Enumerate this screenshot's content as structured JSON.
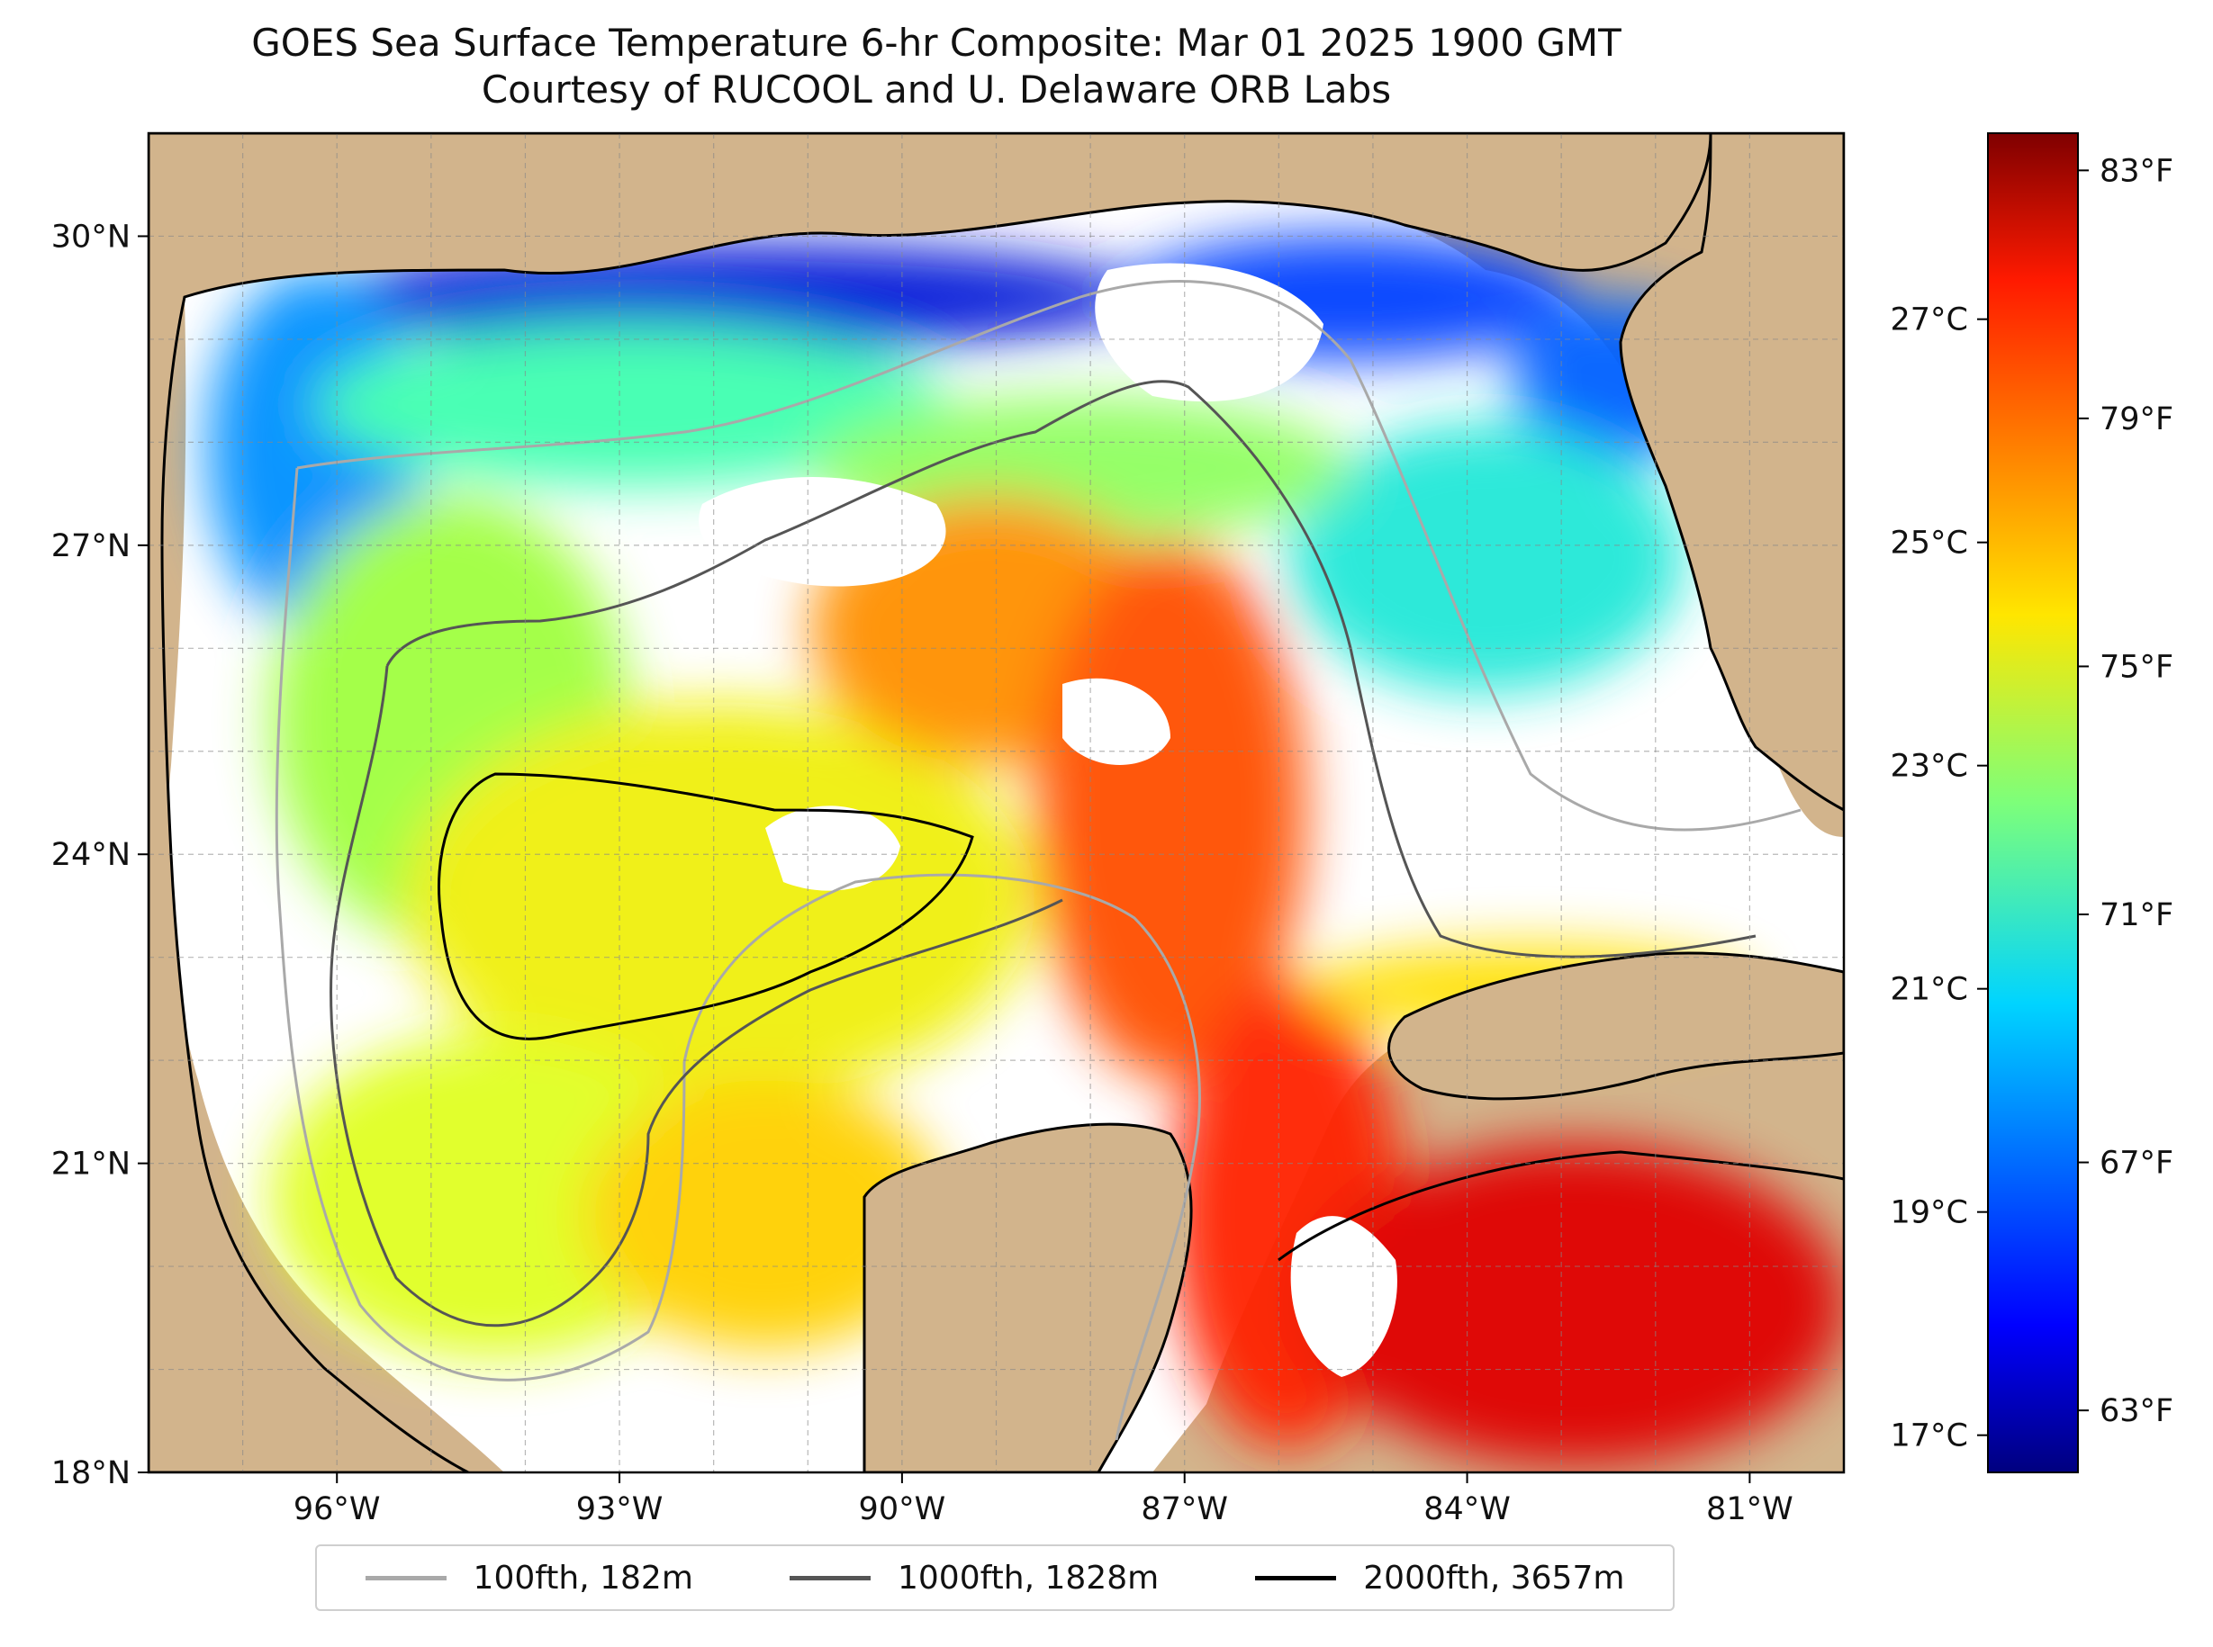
{
  "title": {
    "line1": "GOES Sea Surface Temperature 6-hr Composite: Mar 01 2025 1900 GMT",
    "line2": "Courtesy of RUCOOL and U. Delaware ORB Labs"
  },
  "map": {
    "lon_range": [
      -98.0,
      -80.0
    ],
    "lat_range": [
      18.0,
      31.0
    ],
    "lon_ticks": [
      {
        "value": -96,
        "label": "96°W"
      },
      {
        "value": -93,
        "label": "93°W"
      },
      {
        "value": -90,
        "label": "90°W"
      },
      {
        "value": -87,
        "label": "87°W"
      },
      {
        "value": -84,
        "label": "84°W"
      },
      {
        "value": -81,
        "label": "81°W"
      }
    ],
    "lat_ticks": [
      {
        "value": 30,
        "label": "30°N"
      },
      {
        "value": 27,
        "label": "27°N"
      },
      {
        "value": 24,
        "label": "24°N"
      },
      {
        "value": 21,
        "label": "21°N"
      },
      {
        "value": 18,
        "label": "18°N"
      }
    ],
    "land_color": "#d2b48c",
    "nodata_color": "#ffffff",
    "gridlines": true
  },
  "colorbar": {
    "colormap": "jet",
    "unit_min_f": 62.0,
    "unit_max_f": 83.6,
    "celsius_ticks": [
      {
        "value": 27,
        "label": "27°C"
      },
      {
        "value": 25,
        "label": "25°C"
      },
      {
        "value": 23,
        "label": "23°C"
      },
      {
        "value": 21,
        "label": "21°C"
      },
      {
        "value": 19,
        "label": "19°C"
      },
      {
        "value": 17,
        "label": "17°C"
      }
    ],
    "fahrenheit_ticks": [
      {
        "value": 83,
        "label": "83°F"
      },
      {
        "value": 79,
        "label": "79°F"
      },
      {
        "value": 75,
        "label": "75°F"
      },
      {
        "value": 71,
        "label": "71°F"
      },
      {
        "value": 67,
        "label": "67°F"
      },
      {
        "value": 63,
        "label": "63°F"
      }
    ]
  },
  "legend": {
    "items": [
      {
        "label": "100fth, 182m",
        "color": "#a9a9a9"
      },
      {
        "label": "1000fth, 1828m",
        "color": "#555555"
      },
      {
        "label": "2000fth, 3657m",
        "color": "#000000"
      }
    ]
  }
}
